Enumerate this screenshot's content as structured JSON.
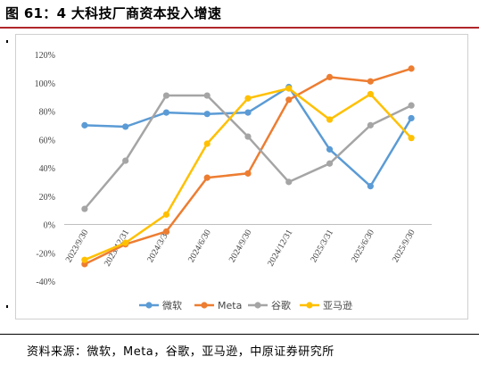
{
  "figure": {
    "title": "图 61：4 大科技厂商资本投入增速",
    "source": "资料来源：微软，Meta，谷歌，亚马逊，中原证券研究所"
  },
  "chart_data": {
    "type": "line",
    "categories": [
      "2023/9/30",
      "2023/12/31",
      "2024/3/31",
      "2024/6/30",
      "2024/9/30",
      "2024/12/31",
      "2025/3/31",
      "2025/6/30",
      "2025/9/30"
    ],
    "y_ticks": [
      "120%",
      "100%",
      "80%",
      "60%",
      "40%",
      "20%",
      "0%",
      "-20%",
      "-40%"
    ],
    "ylim": [
      -40,
      120
    ],
    "y_unit": "%",
    "grid": false,
    "legend_position": "bottom",
    "series": [
      {
        "name": "微软",
        "color": "#5b9bd5",
        "values": [
          70,
          69,
          79,
          78,
          79,
          97,
          53,
          27,
          75
        ]
      },
      {
        "name": "Meta",
        "color": "#ed7d31",
        "values": [
          -28,
          -14,
          -5,
          33,
          36,
          88,
          104,
          101,
          110
        ]
      },
      {
        "name": "谷歌",
        "color": "#a5a5a5",
        "values": [
          11,
          45,
          91,
          91,
          62,
          30,
          43,
          70,
          84
        ]
      },
      {
        "name": "亚马逊",
        "color": "#ffc000",
        "values": [
          -25,
          -13,
          7,
          57,
          89,
          96,
          74,
          92,
          61
        ]
      }
    ]
  }
}
